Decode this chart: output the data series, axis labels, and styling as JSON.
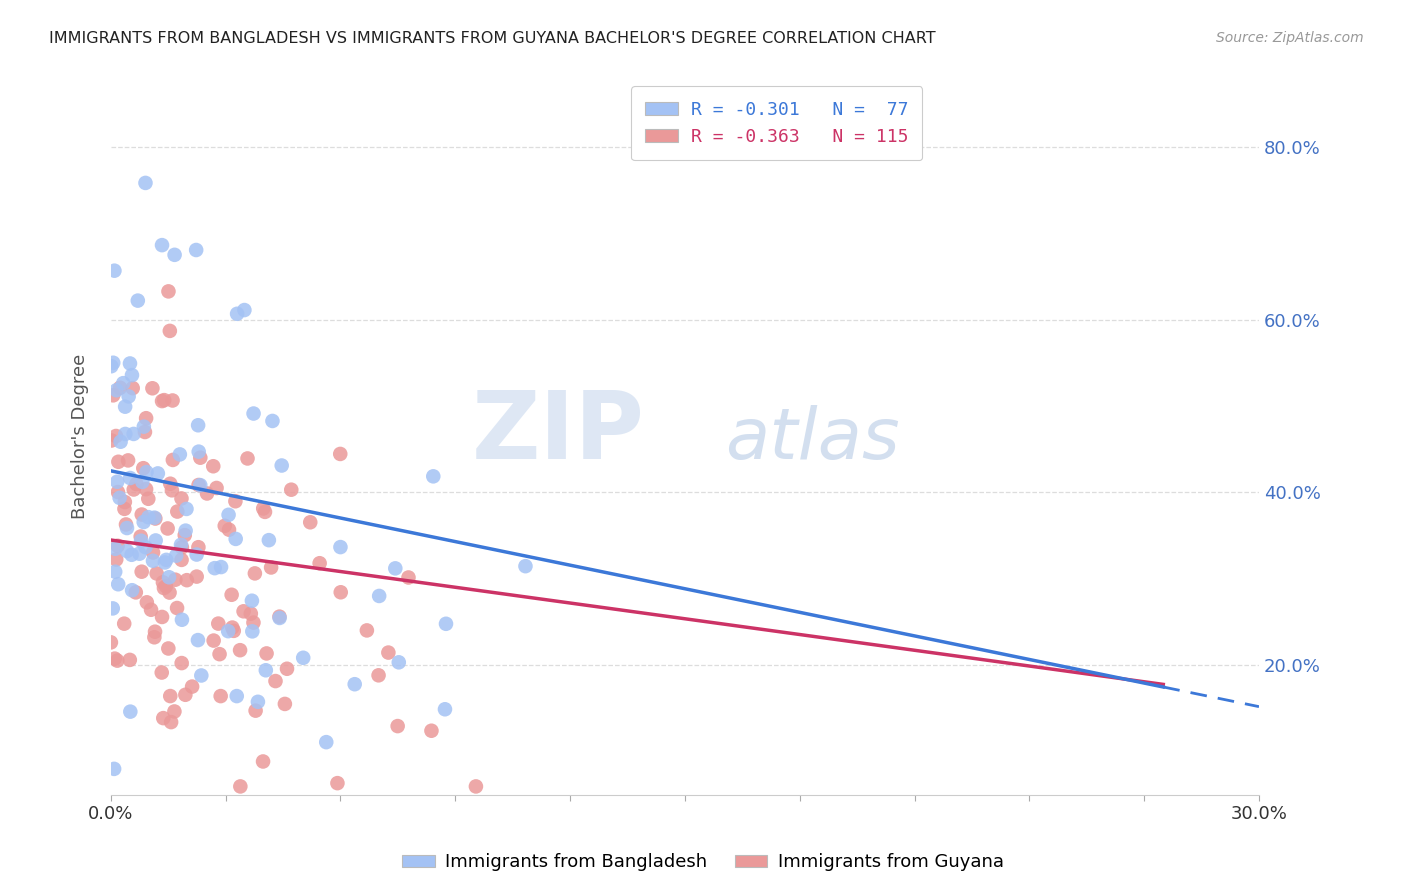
{
  "title": "IMMIGRANTS FROM BANGLADESH VS IMMIGRANTS FROM GUYANA BACHELOR'S DEGREE CORRELATION CHART",
  "source": "Source: ZipAtlas.com",
  "ylabel": "Bachelor's Degree",
  "legend_blue": "R = -0.301   N =  77",
  "legend_pink": "R = -0.363   N = 115",
  "blue_color": "#a4c2f4",
  "pink_color": "#ea9999",
  "blue_line_color": "#3c78d8",
  "pink_line_color": "#cc3366",
  "blue_label": "Immigrants from Bangladesh",
  "pink_label": "Immigrants from Guyana",
  "watermark_zip": "ZIP",
  "watermark_atlas": "atlas",
  "x_min": 0.0,
  "x_max": 0.3,
  "y_min": 0.05,
  "y_max": 0.88,
  "blue_r": -0.301,
  "blue_n": 77,
  "pink_r": -0.363,
  "pink_n": 115,
  "blue_seed": 42,
  "pink_seed": 7,
  "right_yticks": [
    0.2,
    0.4,
    0.6,
    0.8
  ],
  "grid_color": "#dddddd",
  "background": "#ffffff"
}
